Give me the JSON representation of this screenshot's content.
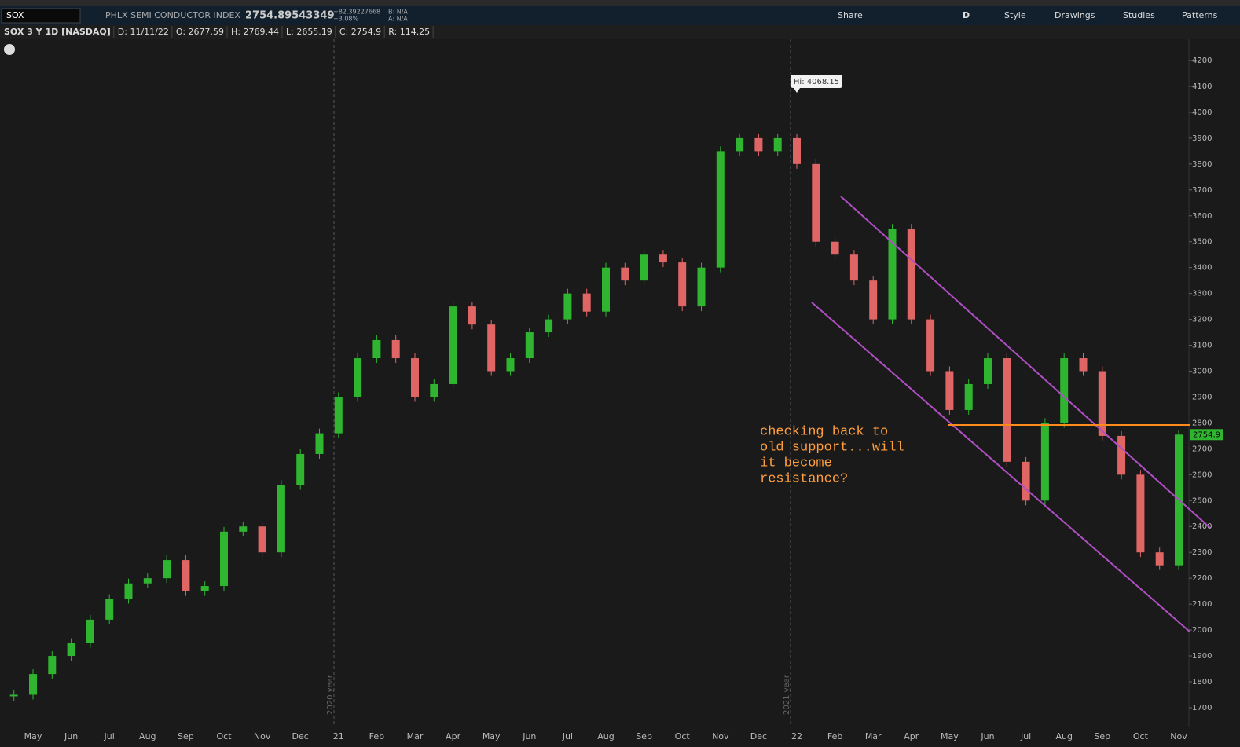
{
  "toolbar": {
    "symbol": "SOX",
    "description": "PHLX SEMI CONDUCTOR INDEX",
    "last": "2754.89543349",
    "change": "+82.39227668",
    "change_pct": "+3.08%",
    "bid": "B: N/A",
    "ask": "A: N/A",
    "buttons": [
      "Share",
      "D",
      "Style",
      "Drawings",
      "Studies",
      "Patterns"
    ]
  },
  "header": [
    "SOX 3 Y 1D [NASDAQ]",
    "D: 11/11/22",
    "O: 2677.59",
    "H: 2769.44",
    "L: 2655.19",
    "C: 2754.9",
    "R: 114.25"
  ],
  "chart_data": {
    "type": "candlestick",
    "categories": [
      null,
      "May",
      null,
      "Jun",
      null,
      "Jul",
      null,
      "Aug",
      null,
      "Sep",
      null,
      "Oct",
      null,
      "Nov",
      null,
      "Dec",
      null,
      "21",
      null,
      "Feb",
      null,
      "Mar",
      null,
      "Apr",
      null,
      "May",
      null,
      "Jun",
      null,
      "Jul",
      null,
      "Aug",
      null,
      "Sep",
      null,
      "Oct",
      null,
      "Nov",
      null,
      "Dec",
      null,
      "22",
      null,
      "Feb",
      null,
      "Mar",
      null,
      "Apr",
      null,
      "May",
      null,
      "Jun",
      null,
      "Jul",
      null,
      "Aug",
      null,
      "Sep",
      null,
      "Oct",
      null,
      "Nov"
    ],
    "values": [
      1750,
      1830,
      1900,
      1950,
      2040,
      2120,
      2180,
      2200,
      2270,
      2150,
      2170,
      2380,
      2400,
      2300,
      2560,
      2680,
      2760,
      2900,
      3050,
      3120,
      3050,
      2900,
      2950,
      3250,
      3180,
      3000,
      3050,
      3150,
      3200,
      3300,
      3230,
      3400,
      3350,
      3450,
      3420,
      3250,
      3400,
      3850,
      3900,
      3850,
      3900,
      3800,
      3500,
      3450,
      3350,
      3200,
      3550,
      3200,
      3000,
      2850,
      2950,
      3050,
      2650,
      2500,
      2800,
      3050,
      3000,
      2750,
      2600,
      2300,
      2250,
      2754.9
    ],
    "up_color": "#2fb52f",
    "down_color": "#e06666",
    "ylim": [
      1627,
      4282
    ],
    "yticks": [
      1700,
      1800,
      1900,
      2000,
      2100,
      2200,
      2300,
      2400,
      2500,
      2600,
      2700,
      2800,
      2900,
      3000,
      3100,
      3200,
      3300,
      3400,
      3500,
      3600,
      3700,
      3800,
      3900,
      4000,
      4100,
      4200
    ],
    "year_markers": [
      "2020 year",
      "2021 year"
    ],
    "hi_label": "Hi: 4068.15",
    "annotation": [
      "checking back to",
      "old support...will",
      "it become",
      "resistance?"
    ]
  }
}
